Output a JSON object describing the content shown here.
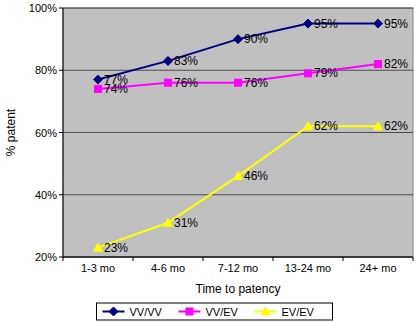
{
  "chart_data": {
    "type": "line",
    "x_label": "Time to patency",
    "y_label": "% patent",
    "categories": [
      "1-3 mo",
      "4-6 mo",
      "7-12 mo",
      "13-24 mo",
      "24+ mo"
    ],
    "series": [
      {
        "name": "VV/VV",
        "color": "#000080",
        "marker": "diamond",
        "values": [
          77,
          83,
          90,
          95,
          95
        ],
        "value_labels": [
          "77%",
          "83%",
          "90%",
          "95%",
          "95%"
        ]
      },
      {
        "name": "VV/EV",
        "color": "#ff00ff",
        "marker": "square",
        "values": [
          74,
          76,
          76,
          79,
          82
        ],
        "value_labels": [
          "74%",
          "76%",
          "76%",
          "79%",
          "82%"
        ]
      },
      {
        "name": "EV/EV",
        "color": "#ffff00",
        "marker": "triangle",
        "values": [
          23,
          31,
          46,
          62,
          62
        ],
        "value_labels": [
          "23%",
          "31%",
          "46%",
          "62%",
          "62%"
        ]
      }
    ],
    "ylim": [
      20,
      100
    ],
    "yticks": [
      {
        "value": 20,
        "label": "20%"
      },
      {
        "value": 40,
        "label": "40%"
      },
      {
        "value": 60,
        "label": "60%"
      },
      {
        "value": 80,
        "label": "80%"
      },
      {
        "value": 100,
        "label": "100%"
      }
    ],
    "grid": true,
    "legend": "bottom",
    "data_labels": true
  }
}
